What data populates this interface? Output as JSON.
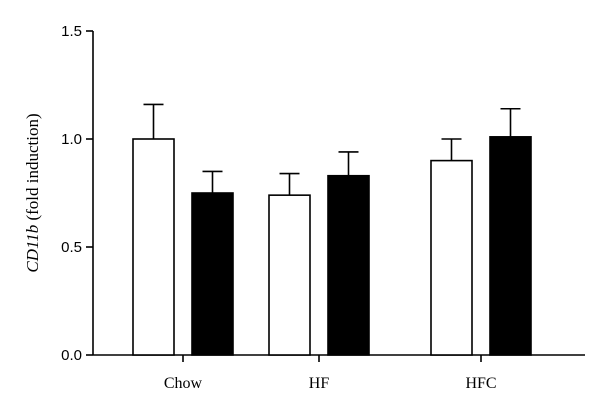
{
  "chart_data": {
    "type": "bar",
    "title": "",
    "xlabel": "",
    "ylabel_italic": "CD11b",
    "ylabel_rest": " (fold induction)",
    "ylim": [
      0.0,
      1.5
    ],
    "yticks": [
      "0.0",
      "0.5",
      "1.0",
      "1.5"
    ],
    "ytick_values": [
      0.0,
      0.5,
      1.0,
      1.5
    ],
    "categories": [
      "Chow",
      "HF",
      "HFC"
    ],
    "series": [
      {
        "fill": "#ffffff",
        "values": [
          1.0,
          0.74,
          0.9
        ],
        "errors": [
          0.16,
          0.1,
          0.1
        ]
      },
      {
        "fill": "#000000",
        "values": [
          0.75,
          0.83,
          1.01
        ],
        "errors": [
          0.1,
          0.11,
          0.13
        ]
      }
    ],
    "grid": false,
    "legend": "none"
  }
}
